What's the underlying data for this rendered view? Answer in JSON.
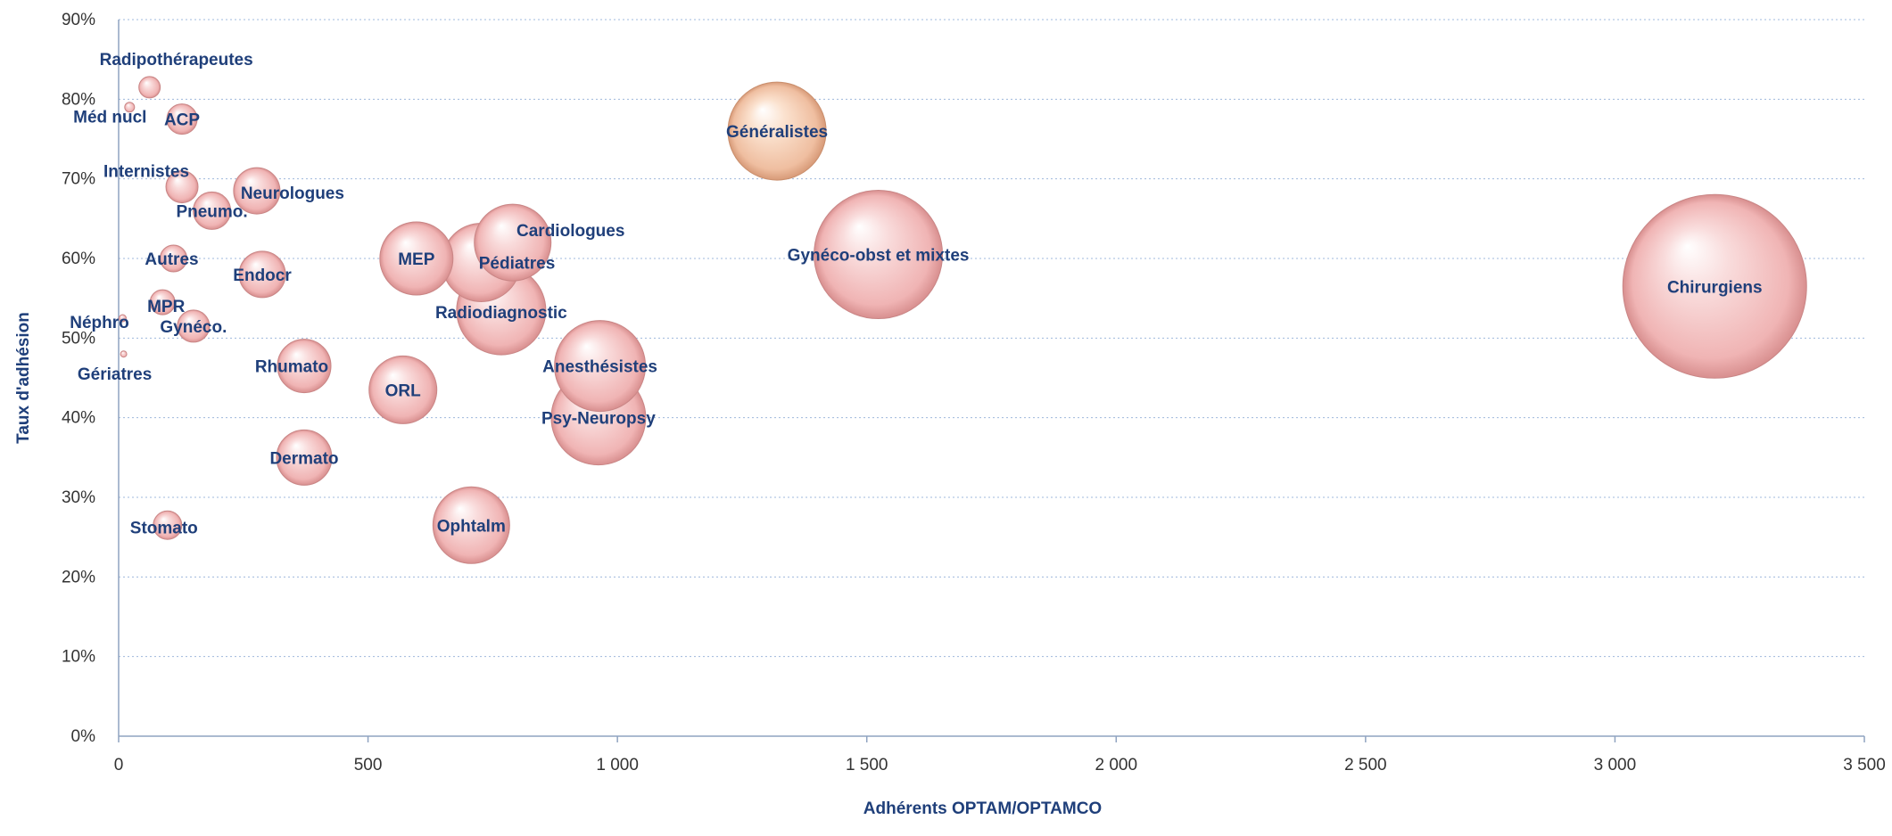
{
  "chart_data": {
    "type": "scatter",
    "subtype": "bubble",
    "title": "",
    "xlabel": "Adhérents OPTAM/OPTAMCO",
    "ylabel": "Taux d'adhésion",
    "xlim": [
      0,
      3500
    ],
    "ylim": [
      0,
      90
    ],
    "x_ticks": [
      "0",
      "500",
      "1 000",
      "1 500",
      "2 000",
      "2 500",
      "3 000",
      "3 500"
    ],
    "y_ticks": [
      "0%",
      "10%",
      "20%",
      "30%",
      "40%",
      "50%",
      "60%",
      "70%",
      "80%",
      "90%"
    ],
    "grid": "horizontal",
    "bubble_color": "#f3bcbc",
    "highlight_color": "#f1c6a8",
    "points": [
      {
        "label": "Radipothérapeutes",
        "x": 62,
        "y": 81.5,
        "size": 24
      },
      {
        "label": "Méd nucl",
        "x": 22,
        "y": 79,
        "size": 11
      },
      {
        "label": "ACP",
        "x": 127,
        "y": 77.5,
        "size": 34
      },
      {
        "label": "Généralistes",
        "x": 1320,
        "y": 76,
        "size": 110
      },
      {
        "label": "Internistes",
        "x": 127,
        "y": 69,
        "size": 36
      },
      {
        "label": "Neurologues",
        "x": 277,
        "y": 68.5,
        "size": 52
      },
      {
        "label": "Pneumo.",
        "x": 187,
        "y": 66,
        "size": 42
      },
      {
        "label": "Cardiologues",
        "x": 790,
        "y": 62,
        "size": 86
      },
      {
        "label": "Autres",
        "x": 110,
        "y": 60,
        "size": 30
      },
      {
        "label": "MEP",
        "x": 597,
        "y": 60,
        "size": 82
      },
      {
        "label": "Pédiatres",
        "x": 727,
        "y": 59.5,
        "size": 88
      },
      {
        "label": "Gynéco-obst et mixtes",
        "x": 1523,
        "y": 60.5,
        "size": 144
      },
      {
        "label": "Endocr",
        "x": 288,
        "y": 58,
        "size": 52
      },
      {
        "label": "Chirurgiens",
        "x": 3200,
        "y": 56.5,
        "size": 206
      },
      {
        "label": "MPR",
        "x": 88,
        "y": 54.5,
        "size": 28
      },
      {
        "label": "Radiodiagnostic",
        "x": 767,
        "y": 53.5,
        "size": 100
      },
      {
        "label": "Néphro",
        "x": 8,
        "y": 52.5,
        "size": 8
      },
      {
        "label": "Gynéco.",
        "x": 150,
        "y": 51.5,
        "size": 36
      },
      {
        "label": "Gériatres",
        "x": 10,
        "y": 48,
        "size": 7
      },
      {
        "label": "Anesthésistes",
        "x": 965,
        "y": 46.5,
        "size": 102
      },
      {
        "label": "Rhumato",
        "x": 372,
        "y": 46.5,
        "size": 60
      },
      {
        "label": "ORL",
        "x": 570,
        "y": 43.5,
        "size": 76
      },
      {
        "label": "Psy-Neuropsy",
        "x": 962,
        "y": 40,
        "size": 106
      },
      {
        "label": "Dermato",
        "x": 372,
        "y": 35,
        "size": 62
      },
      {
        "label": "Stomato",
        "x": 98,
        "y": 26.5,
        "size": 32
      },
      {
        "label": "Ophtalm",
        "x": 707,
        "y": 26.5,
        "size": 86
      }
    ]
  }
}
